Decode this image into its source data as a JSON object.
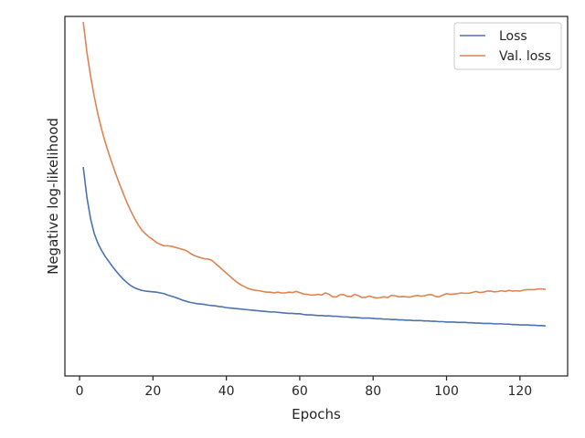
{
  "chart_data": {
    "type": "line",
    "xlabel": "Epochs",
    "ylabel": "Negative log-likelihood",
    "xlim": [
      -4,
      133
    ],
    "ylim": [
      0,
      1
    ],
    "xticks": [
      0,
      20,
      40,
      60,
      80,
      100,
      120
    ],
    "ytick_labels_shown": false,
    "grid": false,
    "legend_position": "top-right",
    "colors": {
      "Loss": "#4c72b0",
      "Val. loss": "#dd8452"
    },
    "x": [
      1,
      2,
      3,
      4,
      5,
      6,
      7,
      8,
      9,
      10,
      11,
      12,
      13,
      14,
      15,
      16,
      17,
      18,
      19,
      20,
      21,
      22,
      23,
      24,
      25,
      26,
      27,
      28,
      29,
      30,
      31,
      32,
      33,
      34,
      35,
      36,
      37,
      38,
      39,
      40,
      41,
      42,
      43,
      44,
      45,
      46,
      47,
      48,
      49,
      50,
      51,
      52,
      53,
      54,
      55,
      56,
      57,
      58,
      59,
      60,
      61,
      62,
      63,
      64,
      65,
      66,
      67,
      68,
      69,
      70,
      71,
      72,
      73,
      74,
      75,
      76,
      77,
      78,
      79,
      80,
      81,
      82,
      83,
      84,
      85,
      86,
      87,
      88,
      89,
      90,
      91,
      92,
      93,
      94,
      95,
      96,
      97,
      98,
      99,
      100,
      101,
      102,
      103,
      104,
      105,
      106,
      107,
      108,
      109,
      110,
      111,
      112,
      113,
      114,
      115,
      116,
      117,
      118,
      119,
      120,
      121,
      122,
      123,
      124,
      125,
      126,
      127
    ],
    "series": [
      {
        "name": "Loss",
        "values": [
          0.581,
          0.497,
          0.437,
          0.396,
          0.369,
          0.349,
          0.332,
          0.318,
          0.304,
          0.291,
          0.279,
          0.268,
          0.259,
          0.251,
          0.245,
          0.241,
          0.238,
          0.236,
          0.235,
          0.234,
          0.233,
          0.231,
          0.229,
          0.225,
          0.222,
          0.219,
          0.215,
          0.211,
          0.208,
          0.205,
          0.203,
          0.201,
          0.2,
          0.199,
          0.197,
          0.196,
          0.195,
          0.193,
          0.192,
          0.19,
          0.189,
          0.188,
          0.187,
          0.186,
          0.185,
          0.184,
          0.183,
          0.182,
          0.181,
          0.18,
          0.179,
          0.178,
          0.178,
          0.177,
          0.176,
          0.175,
          0.174,
          0.174,
          0.173,
          0.173,
          0.171,
          0.17,
          0.17,
          0.169,
          0.168,
          0.168,
          0.167,
          0.167,
          0.166,
          0.166,
          0.165,
          0.164,
          0.164,
          0.163,
          0.163,
          0.162,
          0.161,
          0.161,
          0.161,
          0.16,
          0.159,
          0.159,
          0.158,
          0.158,
          0.157,
          0.157,
          0.156,
          0.156,
          0.155,
          0.155,
          0.154,
          0.154,
          0.154,
          0.153,
          0.153,
          0.152,
          0.152,
          0.151,
          0.151,
          0.15,
          0.15,
          0.15,
          0.149,
          0.149,
          0.149,
          0.148,
          0.148,
          0.147,
          0.147,
          0.146,
          0.146,
          0.146,
          0.145,
          0.145,
          0.145,
          0.144,
          0.144,
          0.143,
          0.143,
          0.142,
          0.142,
          0.142,
          0.141,
          0.141,
          0.14,
          0.14,
          0.139
        ]
      },
      {
        "name": "Val. loss",
        "values": [
          0.985,
          0.9,
          0.834,
          0.777,
          0.728,
          0.686,
          0.65,
          0.617,
          0.587,
          0.558,
          0.531,
          0.505,
          0.48,
          0.458,
          0.438,
          0.42,
          0.405,
          0.395,
          0.386,
          0.379,
          0.371,
          0.366,
          0.362,
          0.362,
          0.361,
          0.358,
          0.355,
          0.352,
          0.349,
          0.342,
          0.336,
          0.332,
          0.329,
          0.326,
          0.325,
          0.322,
          0.313,
          0.304,
          0.295,
          0.286,
          0.277,
          0.268,
          0.26,
          0.253,
          0.248,
          0.243,
          0.24,
          0.238,
          0.237,
          0.235,
          0.233,
          0.233,
          0.231,
          0.233,
          0.231,
          0.231,
          0.233,
          0.232,
          0.235,
          0.232,
          0.228,
          0.227,
          0.225,
          0.225,
          0.227,
          0.225,
          0.231,
          0.227,
          0.22,
          0.22,
          0.226,
          0.226,
          0.221,
          0.221,
          0.227,
          0.223,
          0.218,
          0.219,
          0.222,
          0.219,
          0.217,
          0.218,
          0.22,
          0.218,
          0.224,
          0.223,
          0.22,
          0.221,
          0.22,
          0.219,
          0.222,
          0.224,
          0.222,
          0.223,
          0.226,
          0.226,
          0.221,
          0.22,
          0.225,
          0.229,
          0.227,
          0.228,
          0.229,
          0.231,
          0.23,
          0.23,
          0.232,
          0.235,
          0.232,
          0.233,
          0.236,
          0.236,
          0.234,
          0.235,
          0.237,
          0.235,
          0.238,
          0.236,
          0.237,
          0.236,
          0.239,
          0.24,
          0.24,
          0.24,
          0.242,
          0.242,
          0.241
        ]
      }
    ]
  }
}
